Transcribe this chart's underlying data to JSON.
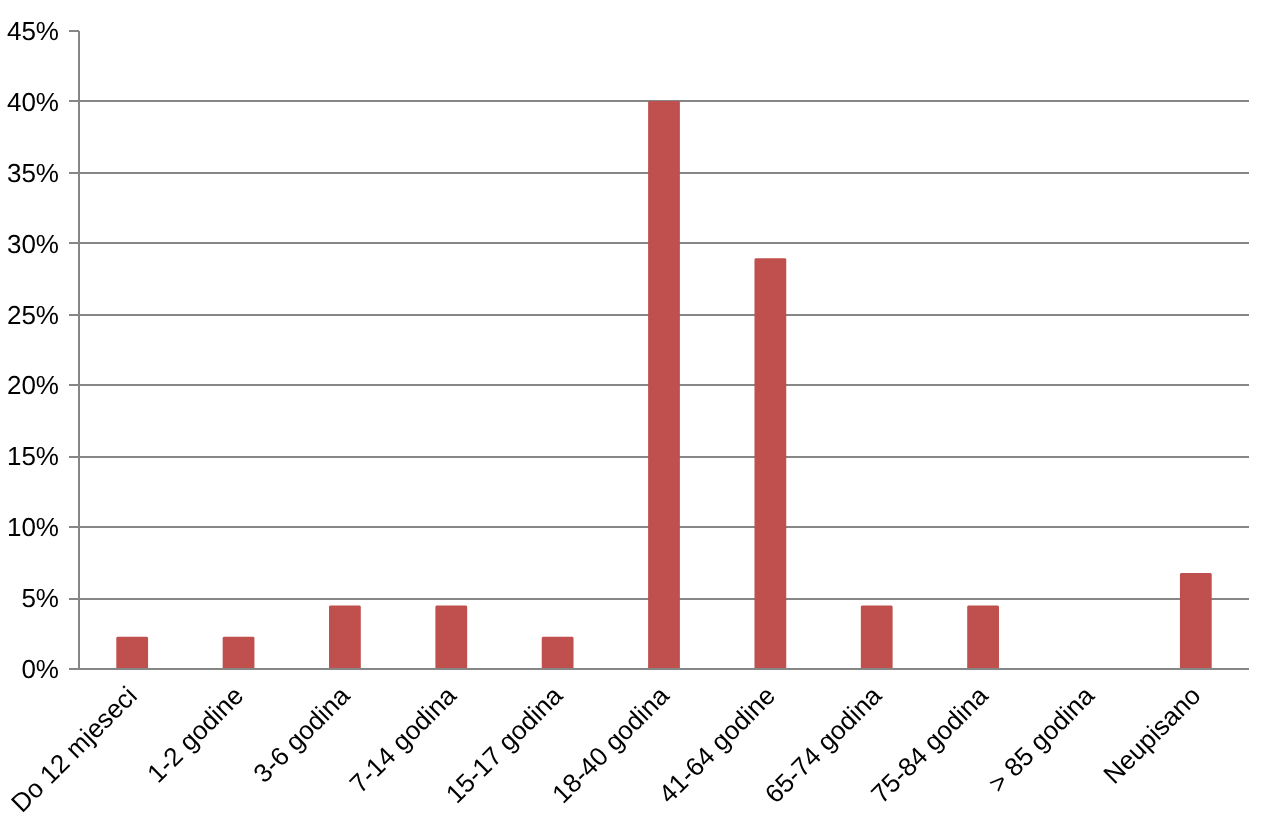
{
  "chart_data": {
    "type": "bar",
    "categories": [
      "Do 12 mjeseci",
      "1-2 godine",
      "3-6 godina",
      "7-14 godina",
      "15-17 godina",
      "18-40 godina",
      "41-64 godine",
      "65-74 godina",
      "75-84 godina",
      "> 85 godina",
      "Neupisano"
    ],
    "values": [
      2.2,
      2.2,
      4.4,
      4.4,
      2.2,
      40,
      28.9,
      4.4,
      4.4,
      0,
      6.7
    ],
    "color": "#c0504d",
    "ylim": [
      0,
      45
    ],
    "yticks": [
      {
        "value": 0,
        "label": "0%"
      },
      {
        "value": 5,
        "label": "5%"
      },
      {
        "value": 10,
        "label": "10%"
      },
      {
        "value": 15,
        "label": "15%"
      },
      {
        "value": 20,
        "label": "20%"
      },
      {
        "value": 25,
        "label": "25%"
      },
      {
        "value": 30,
        "label": "30%"
      },
      {
        "value": 35,
        "label": "35%"
      },
      {
        "value": 40,
        "label": "40%"
      },
      {
        "value": 45,
        "label": "45%"
      }
    ],
    "grid": "y"
  }
}
